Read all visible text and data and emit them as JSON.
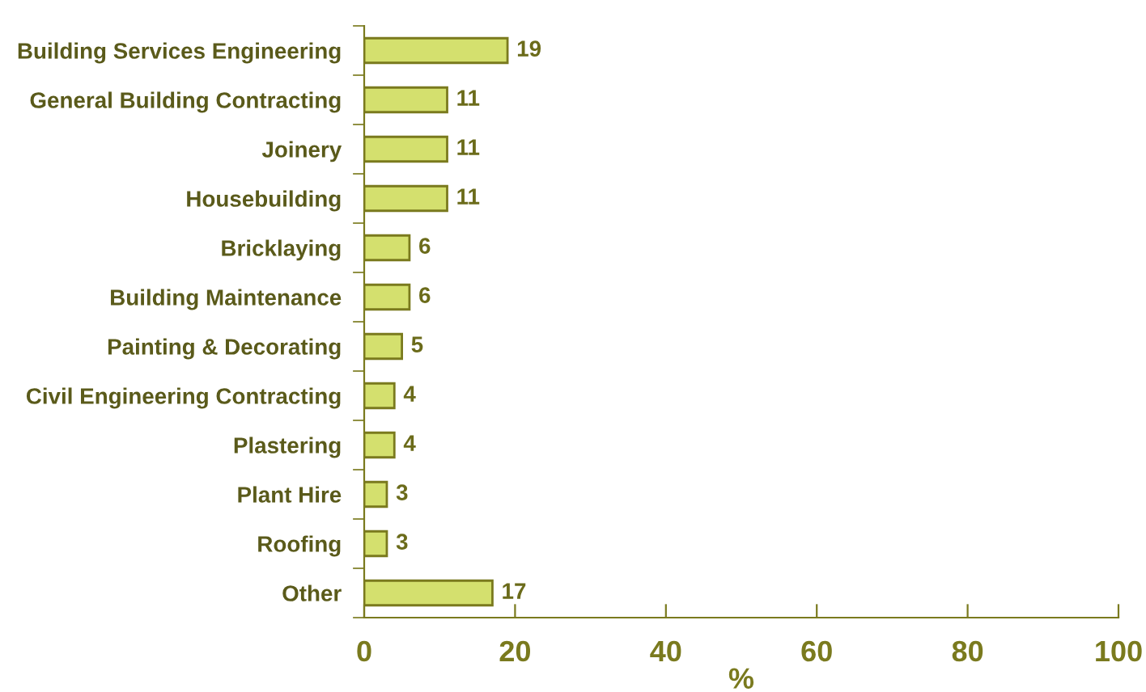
{
  "chart_data": {
    "type": "bar",
    "orientation": "horizontal",
    "xlabel": "%",
    "categories": [
      "Building Services Engineering",
      "General Building Contracting",
      "Joinery",
      "Housebuilding",
      "Bricklaying",
      "Building Maintenance",
      "Painting & Decorating",
      "Civil Engineering Contracting",
      "Plastering",
      "Plant Hire",
      "Roofing",
      "Other"
    ],
    "values": [
      19,
      11,
      11,
      11,
      6,
      6,
      5,
      4,
      4,
      3,
      3,
      17
    ],
    "color": "#d4e06e",
    "data_labels": true,
    "xlim": [
      0,
      100
    ],
    "xticks": [
      0,
      20,
      40,
      60,
      80,
      100
    ],
    "grid": false,
    "legend": false
  }
}
